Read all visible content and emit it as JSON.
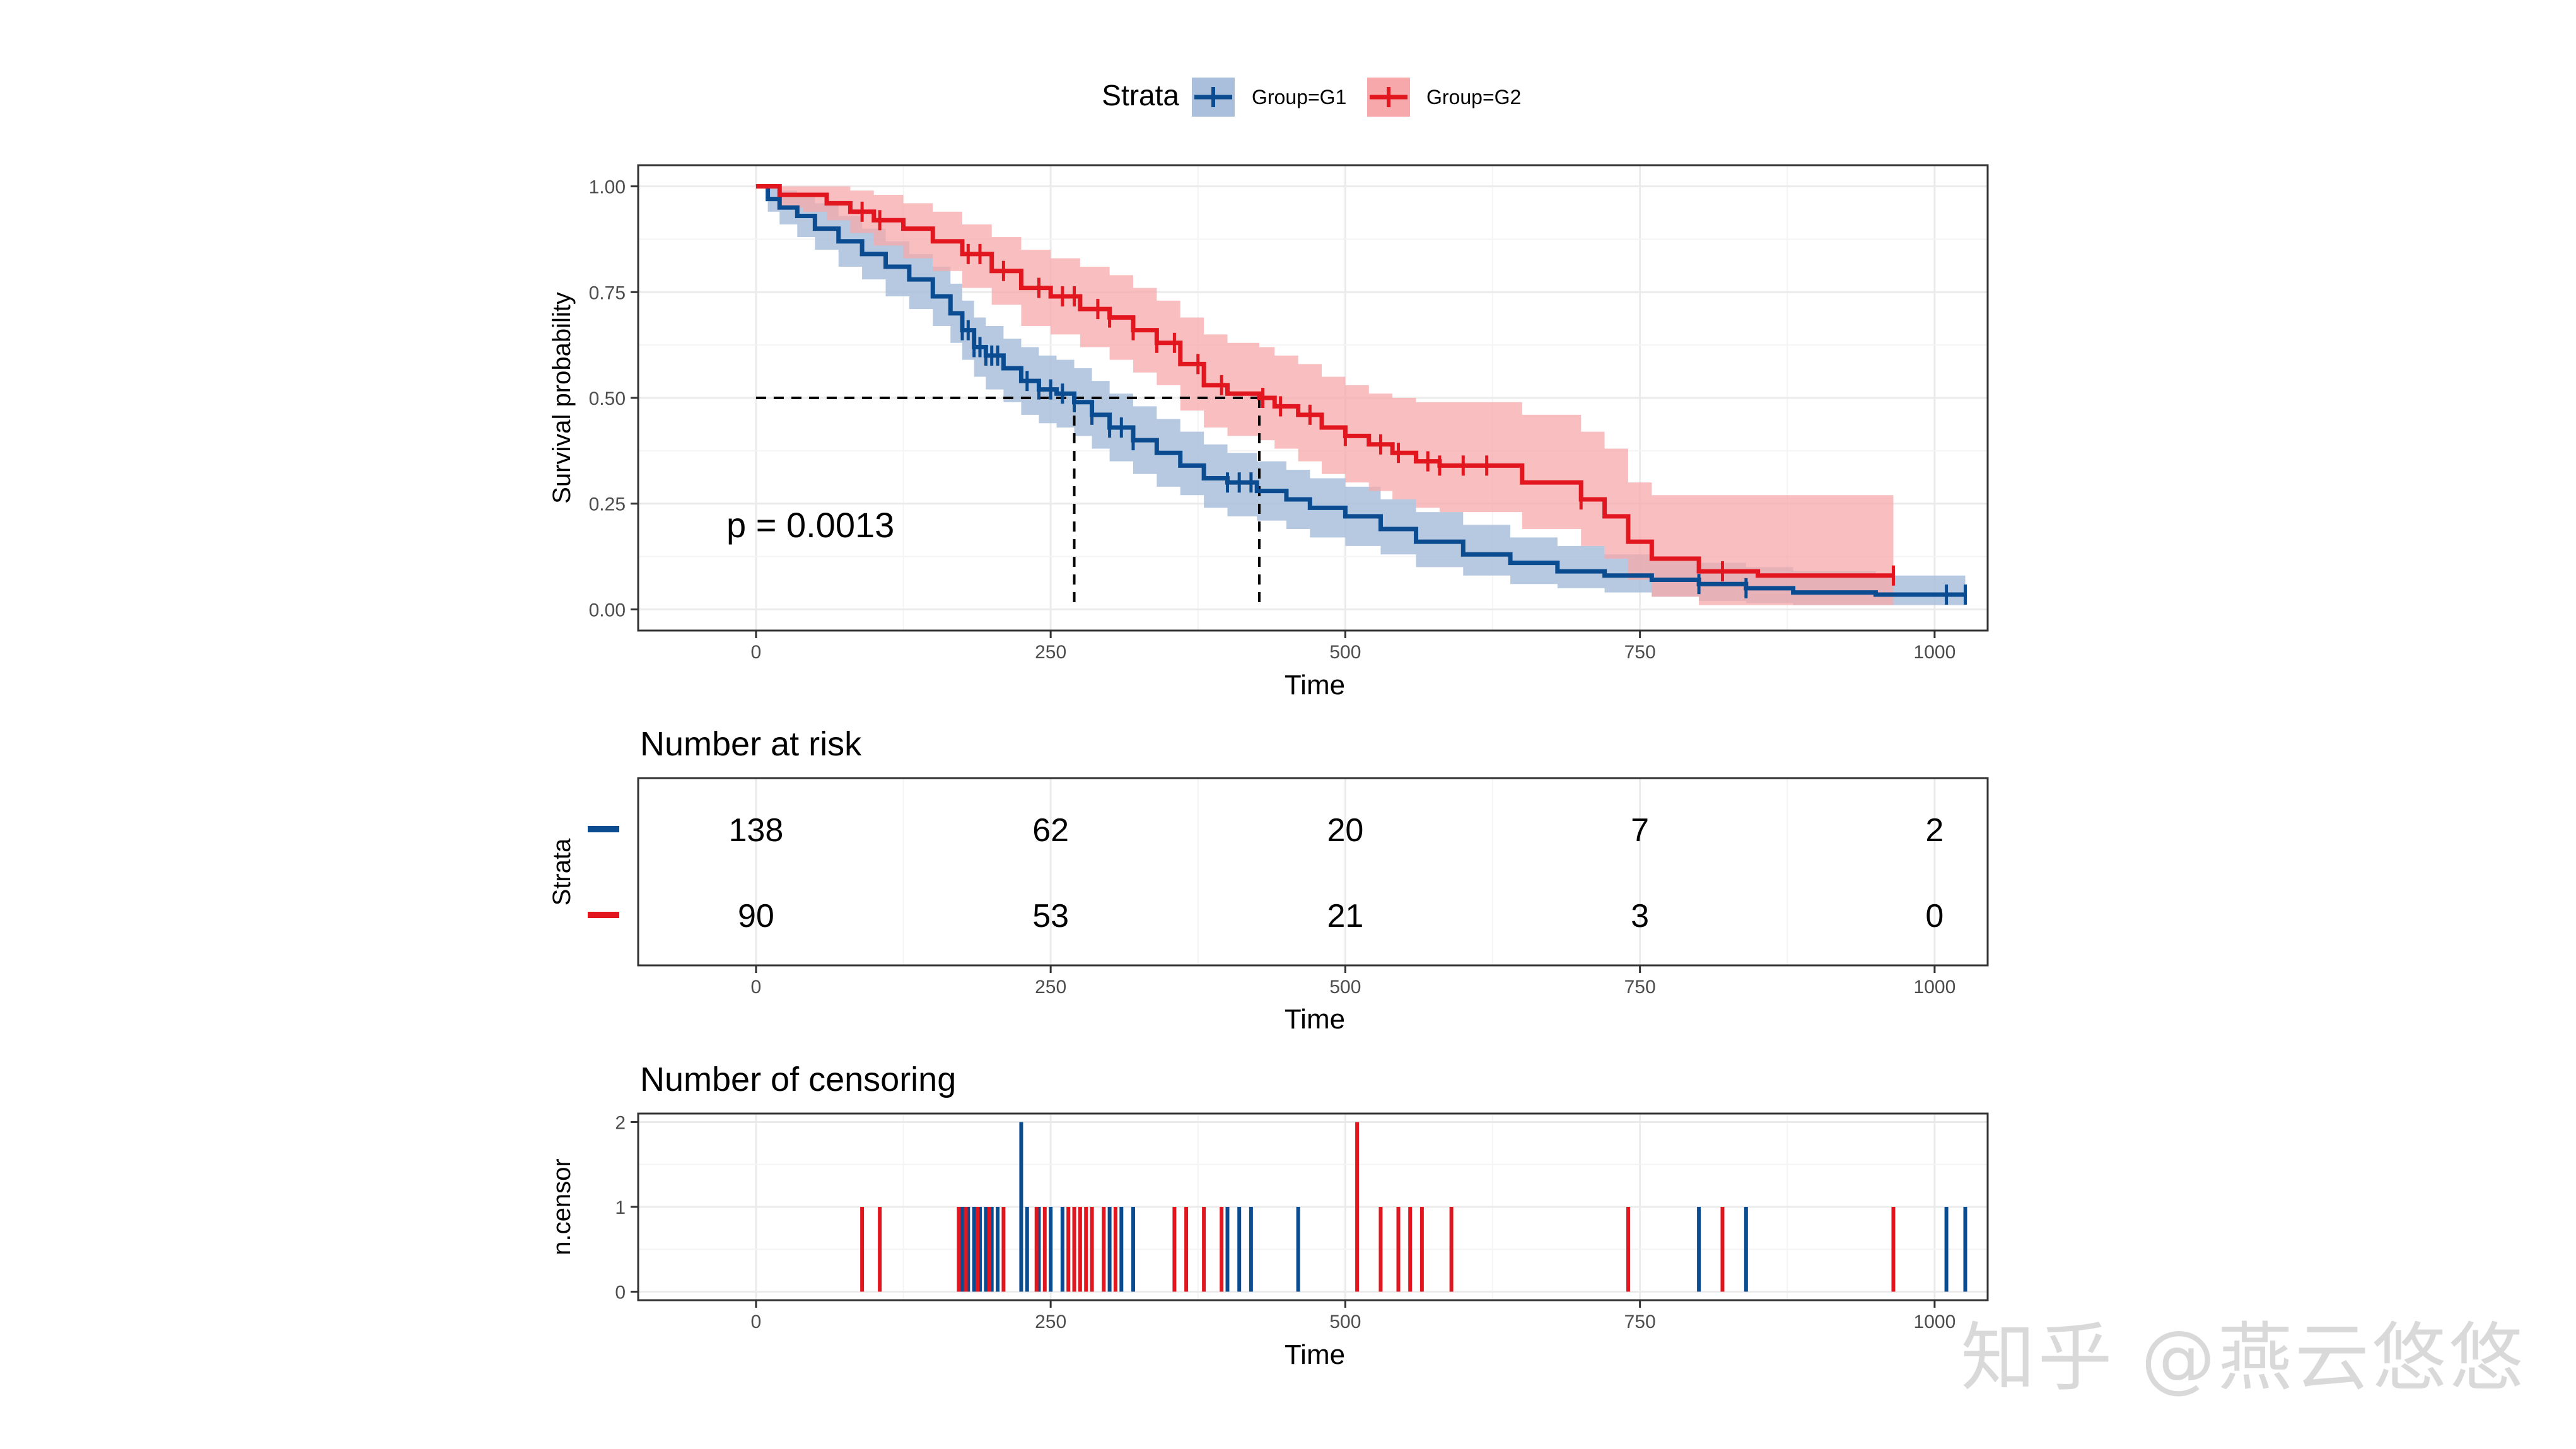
{
  "legend": {
    "title": "Strata",
    "items": [
      {
        "label": "Group=G1",
        "color": "#0b4c91"
      },
      {
        "label": "Group=G2",
        "color": "#e2161f"
      }
    ]
  },
  "watermark": "知乎 @燕云悠悠",
  "chart_data": [
    {
      "id": "survival",
      "type": "line",
      "title": "",
      "xlabel": "Time",
      "ylabel": "Survival probability",
      "xlim": [
        -100,
        1045
      ],
      "ylim": [
        -0.05,
        1.05
      ],
      "xticks": [
        0,
        250,
        500,
        750,
        1000
      ],
      "yticks": [
        0.0,
        0.25,
        0.5,
        0.75,
        1.0
      ],
      "ytick_labels": [
        "0.00",
        "0.25",
        "0.50",
        "0.75",
        "1.00"
      ],
      "annotation": "p = 0.0013",
      "median_line": {
        "y": 0.5,
        "x_g1": 270,
        "x_g2": 427
      },
      "series": [
        {
          "name": "Group=G1",
          "color": "#0b4c91",
          "fill": "#a9bfdc",
          "x": [
            0,
            10,
            20,
            35,
            50,
            70,
            90,
            110,
            130,
            150,
            165,
            175,
            185,
            195,
            210,
            225,
            240,
            255,
            270,
            285,
            300,
            320,
            340,
            360,
            380,
            400,
            425,
            450,
            470,
            500,
            530,
            560,
            600,
            640,
            680,
            720,
            760,
            800,
            840,
            880,
            950,
            1026
          ],
          "y": [
            1.0,
            0.97,
            0.95,
            0.93,
            0.9,
            0.87,
            0.84,
            0.81,
            0.78,
            0.74,
            0.7,
            0.66,
            0.62,
            0.6,
            0.57,
            0.54,
            0.52,
            0.51,
            0.49,
            0.46,
            0.43,
            0.4,
            0.37,
            0.34,
            0.31,
            0.3,
            0.28,
            0.26,
            0.24,
            0.22,
            0.19,
            0.16,
            0.13,
            0.11,
            0.09,
            0.08,
            0.07,
            0.06,
            0.05,
            0.04,
            0.035,
            0.035
          ],
          "lower": [
            1.0,
            0.94,
            0.91,
            0.88,
            0.85,
            0.81,
            0.78,
            0.74,
            0.71,
            0.67,
            0.63,
            0.59,
            0.55,
            0.52,
            0.49,
            0.46,
            0.44,
            0.43,
            0.41,
            0.38,
            0.35,
            0.32,
            0.29,
            0.27,
            0.24,
            0.22,
            0.21,
            0.19,
            0.17,
            0.15,
            0.13,
            0.1,
            0.08,
            0.06,
            0.05,
            0.04,
            0.03,
            0.02,
            0.015,
            0.01,
            0.01,
            0.01
          ],
          "upper": [
            1.0,
            1.0,
            0.99,
            0.98,
            0.96,
            0.93,
            0.9,
            0.87,
            0.84,
            0.81,
            0.77,
            0.73,
            0.69,
            0.67,
            0.64,
            0.62,
            0.6,
            0.59,
            0.57,
            0.54,
            0.51,
            0.48,
            0.45,
            0.42,
            0.39,
            0.37,
            0.35,
            0.33,
            0.31,
            0.29,
            0.26,
            0.23,
            0.2,
            0.17,
            0.15,
            0.13,
            0.12,
            0.11,
            0.1,
            0.09,
            0.08,
            0.08
          ],
          "censor_x": [
            175,
            180,
            185,
            190,
            195,
            200,
            205,
            230,
            240,
            250,
            260,
            270,
            285,
            300,
            310,
            320,
            400,
            410,
            420,
            800,
            840,
            1010,
            1026
          ]
        },
        {
          "name": "Group=G2",
          "color": "#e2161f",
          "fill": "#f7a8aa",
          "x": [
            0,
            20,
            40,
            60,
            80,
            100,
            125,
            150,
            175,
            200,
            225,
            250,
            275,
            300,
            320,
            340,
            360,
            380,
            400,
            427,
            440,
            460,
            480,
            500,
            520,
            540,
            560,
            580,
            600,
            650,
            700,
            720,
            740,
            760,
            800,
            850,
            900,
            965
          ],
          "y": [
            1.0,
            0.98,
            0.98,
            0.96,
            0.94,
            0.92,
            0.9,
            0.87,
            0.84,
            0.8,
            0.76,
            0.74,
            0.71,
            0.69,
            0.66,
            0.63,
            0.58,
            0.53,
            0.51,
            0.5,
            0.48,
            0.46,
            0.43,
            0.41,
            0.39,
            0.37,
            0.35,
            0.34,
            0.34,
            0.3,
            0.26,
            0.22,
            0.16,
            0.12,
            0.09,
            0.08,
            0.08,
            0.08
          ],
          "lower": [
            1.0,
            0.95,
            0.94,
            0.92,
            0.89,
            0.86,
            0.83,
            0.8,
            0.76,
            0.72,
            0.67,
            0.65,
            0.62,
            0.59,
            0.56,
            0.53,
            0.47,
            0.43,
            0.41,
            0.4,
            0.38,
            0.35,
            0.32,
            0.3,
            0.28,
            0.26,
            0.24,
            0.23,
            0.23,
            0.19,
            0.15,
            0.12,
            0.07,
            0.03,
            0.01,
            0.01,
            0.01,
            0.01
          ],
          "upper": [
            1.0,
            1.0,
            1.0,
            1.0,
            0.99,
            0.98,
            0.96,
            0.94,
            0.91,
            0.88,
            0.85,
            0.83,
            0.81,
            0.79,
            0.76,
            0.73,
            0.69,
            0.65,
            0.63,
            0.62,
            0.6,
            0.58,
            0.55,
            0.53,
            0.51,
            0.5,
            0.49,
            0.49,
            0.49,
            0.46,
            0.42,
            0.38,
            0.3,
            0.27,
            0.27,
            0.27,
            0.27,
            0.27
          ],
          "censor_x": [
            90,
            105,
            180,
            190,
            210,
            240,
            260,
            270,
            290,
            300,
            320,
            340,
            355,
            375,
            395,
            430,
            445,
            470,
            500,
            530,
            545,
            570,
            580,
            600,
            620,
            700,
            820,
            965
          ]
        }
      ]
    },
    {
      "id": "risk",
      "type": "table",
      "title": "Number at risk",
      "xlabel": "Time",
      "ylabel": "Strata",
      "xlim": [
        -100,
        1045
      ],
      "xticks": [
        0,
        250,
        500,
        750,
        1000
      ],
      "rows": [
        {
          "name": "Group=G1",
          "color": "#0b4c91",
          "values": [
            "138",
            "62",
            "20",
            "7",
            "2"
          ]
        },
        {
          "name": "Group=G2",
          "color": "#e2161f",
          "values": [
            "90",
            "53",
            "21",
            "3",
            "0"
          ]
        }
      ]
    },
    {
      "id": "censor",
      "type": "bar",
      "title": "Number of censoring",
      "xlabel": "Time",
      "ylabel": "n.censor",
      "xlim": [
        -100,
        1045
      ],
      "ylim": [
        -0.1,
        2.1
      ],
      "xticks": [
        0,
        250,
        500,
        750,
        1000
      ],
      "yticks": [
        0,
        1,
        2
      ],
      "series": [
        {
          "name": "Group=G1",
          "color": "#0b4c91",
          "x": [
            175,
            180,
            185,
            190,
            195,
            200,
            205,
            225,
            230,
            240,
            250,
            260,
            270,
            285,
            300,
            310,
            320,
            400,
            410,
            420,
            460,
            800,
            840,
            1010,
            1026
          ],
          "values": [
            1,
            1,
            1,
            1,
            1,
            1,
            1,
            2,
            1,
            1,
            1,
            1,
            1,
            1,
            1,
            1,
            1,
            1,
            1,
            1,
            1,
            1,
            1,
            1,
            1
          ]
        },
        {
          "name": "Group=G2",
          "color": "#e2161f",
          "x": [
            90,
            105,
            172,
            178,
            188,
            198,
            210,
            238,
            245,
            265,
            270,
            275,
            280,
            285,
            295,
            305,
            355,
            365,
            380,
            395,
            510,
            530,
            545,
            555,
            565,
            590,
            740,
            820,
            965
          ],
          "values": [
            1,
            1,
            1,
            1,
            1,
            1,
            1,
            1,
            1,
            1,
            1,
            1,
            1,
            1,
            1,
            1,
            1,
            1,
            1,
            1,
            2,
            1,
            1,
            1,
            1,
            1,
            1,
            1,
            1
          ]
        }
      ]
    }
  ]
}
